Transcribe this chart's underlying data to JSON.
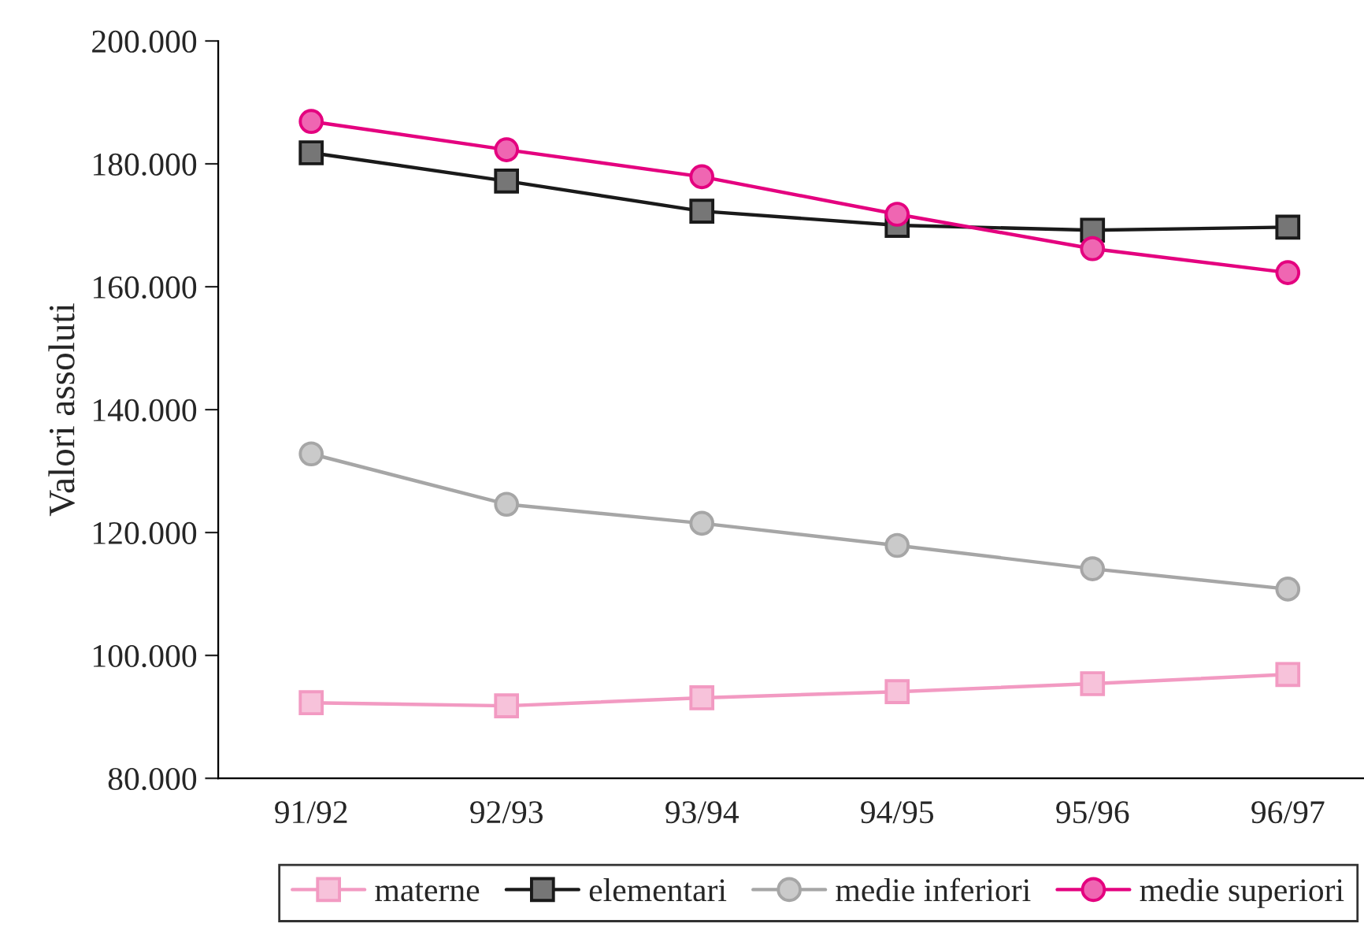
{
  "chart_data": {
    "type": "line",
    "ylabel": "Valori assoluti",
    "categories": [
      "91/92",
      "92/93",
      "93/94",
      "94/95",
      "95/96",
      "96/97"
    ],
    "series": [
      {
        "name": "materne",
        "color": "#f29ac2",
        "marker": "square",
        "values": [
          92300,
          91800,
          93100,
          94100,
          95400,
          96900
        ]
      },
      {
        "name": "elementari",
        "color": "#1a1a1a",
        "marker": "square",
        "values": [
          181800,
          177200,
          172300,
          170000,
          169200,
          169700
        ]
      },
      {
        "name": "medie inferiori",
        "color": "#a6a6a6",
        "marker": "circle",
        "values": [
          132800,
          124600,
          121500,
          117900,
          114100,
          110800
        ]
      },
      {
        "name": "medie superiori",
        "color": "#e4007f",
        "marker": "circle",
        "values": [
          186900,
          182300,
          177900,
          171800,
          166200,
          162300
        ]
      }
    ],
    "ylim": [
      80000,
      200000
    ],
    "yticks": [
      {
        "value": 80000,
        "label": "80.000"
      },
      {
        "value": 100000,
        "label": "100.000"
      },
      {
        "value": 120000,
        "label": "120.000"
      },
      {
        "value": 140000,
        "label": "140.000"
      },
      {
        "value": 160000,
        "label": "160.000"
      },
      {
        "value": 180000,
        "label": "180.000"
      },
      {
        "value": 200000,
        "label": "200.000"
      }
    ],
    "grid": false,
    "legend": "bottom"
  }
}
